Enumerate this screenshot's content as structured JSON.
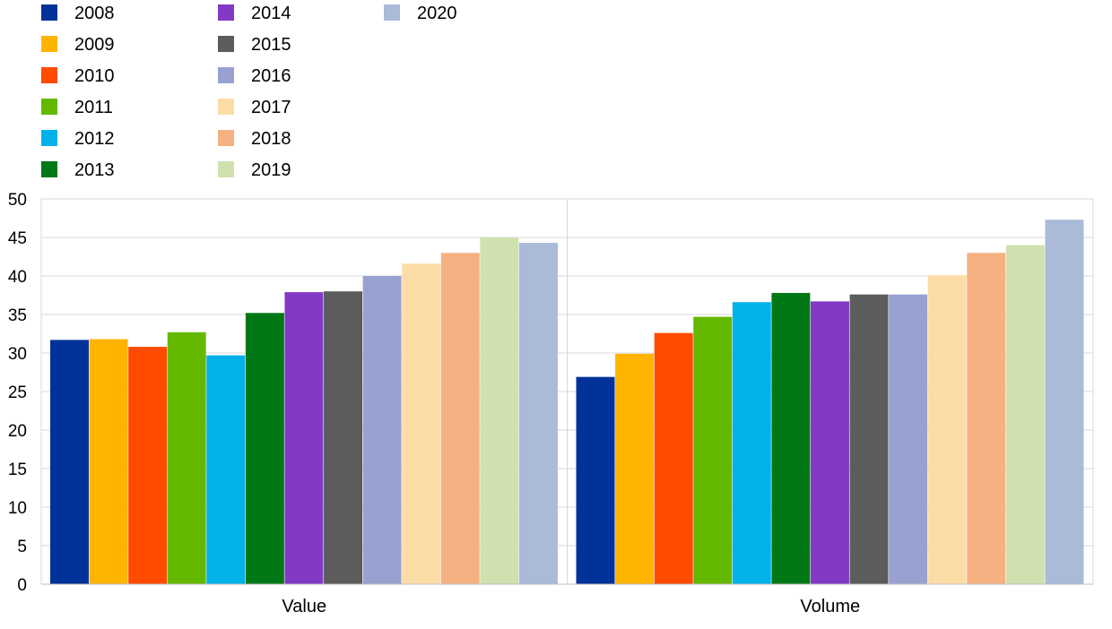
{
  "chart_data": {
    "type": "bar",
    "categories": [
      "Value",
      "Volume"
    ],
    "ylim": [
      0,
      50
    ],
    "yticks": [
      0,
      5,
      10,
      15,
      20,
      25,
      30,
      35,
      40,
      45,
      50
    ],
    "grid": true,
    "legend_position": "top-left",
    "series": [
      {
        "name": "2008",
        "color": "#003299",
        "values": [
          31.7,
          26.9
        ]
      },
      {
        "name": "2009",
        "color": "#FFB400",
        "values": [
          31.8,
          29.9
        ]
      },
      {
        "name": "2010",
        "color": "#FF4B00",
        "values": [
          30.8,
          32.6
        ]
      },
      {
        "name": "2011",
        "color": "#65B800",
        "values": [
          32.7,
          34.7
        ]
      },
      {
        "name": "2012",
        "color": "#00B1EA",
        "values": [
          29.7,
          36.6
        ]
      },
      {
        "name": "2013",
        "color": "#007816",
        "values": [
          35.2,
          37.8
        ]
      },
      {
        "name": "2014",
        "color": "#8139C6",
        "values": [
          37.9,
          36.7
        ]
      },
      {
        "name": "2015",
        "color": "#5C5C5C",
        "values": [
          38.0,
          37.6
        ]
      },
      {
        "name": "2016",
        "color": "#98A1D0",
        "values": [
          40.0,
          37.6
        ]
      },
      {
        "name": "2017",
        "color": "#FDDDA7",
        "values": [
          41.6,
          40.1
        ]
      },
      {
        "name": "2018",
        "color": "#F6B183",
        "values": [
          43.0,
          43.0
        ]
      },
      {
        "name": "2019",
        "color": "#CEE1AF",
        "values": [
          45.0,
          44.0
        ]
      },
      {
        "name": "2020",
        "color": "#AABAD8",
        "values": [
          44.3,
          47.3
        ]
      }
    ]
  }
}
